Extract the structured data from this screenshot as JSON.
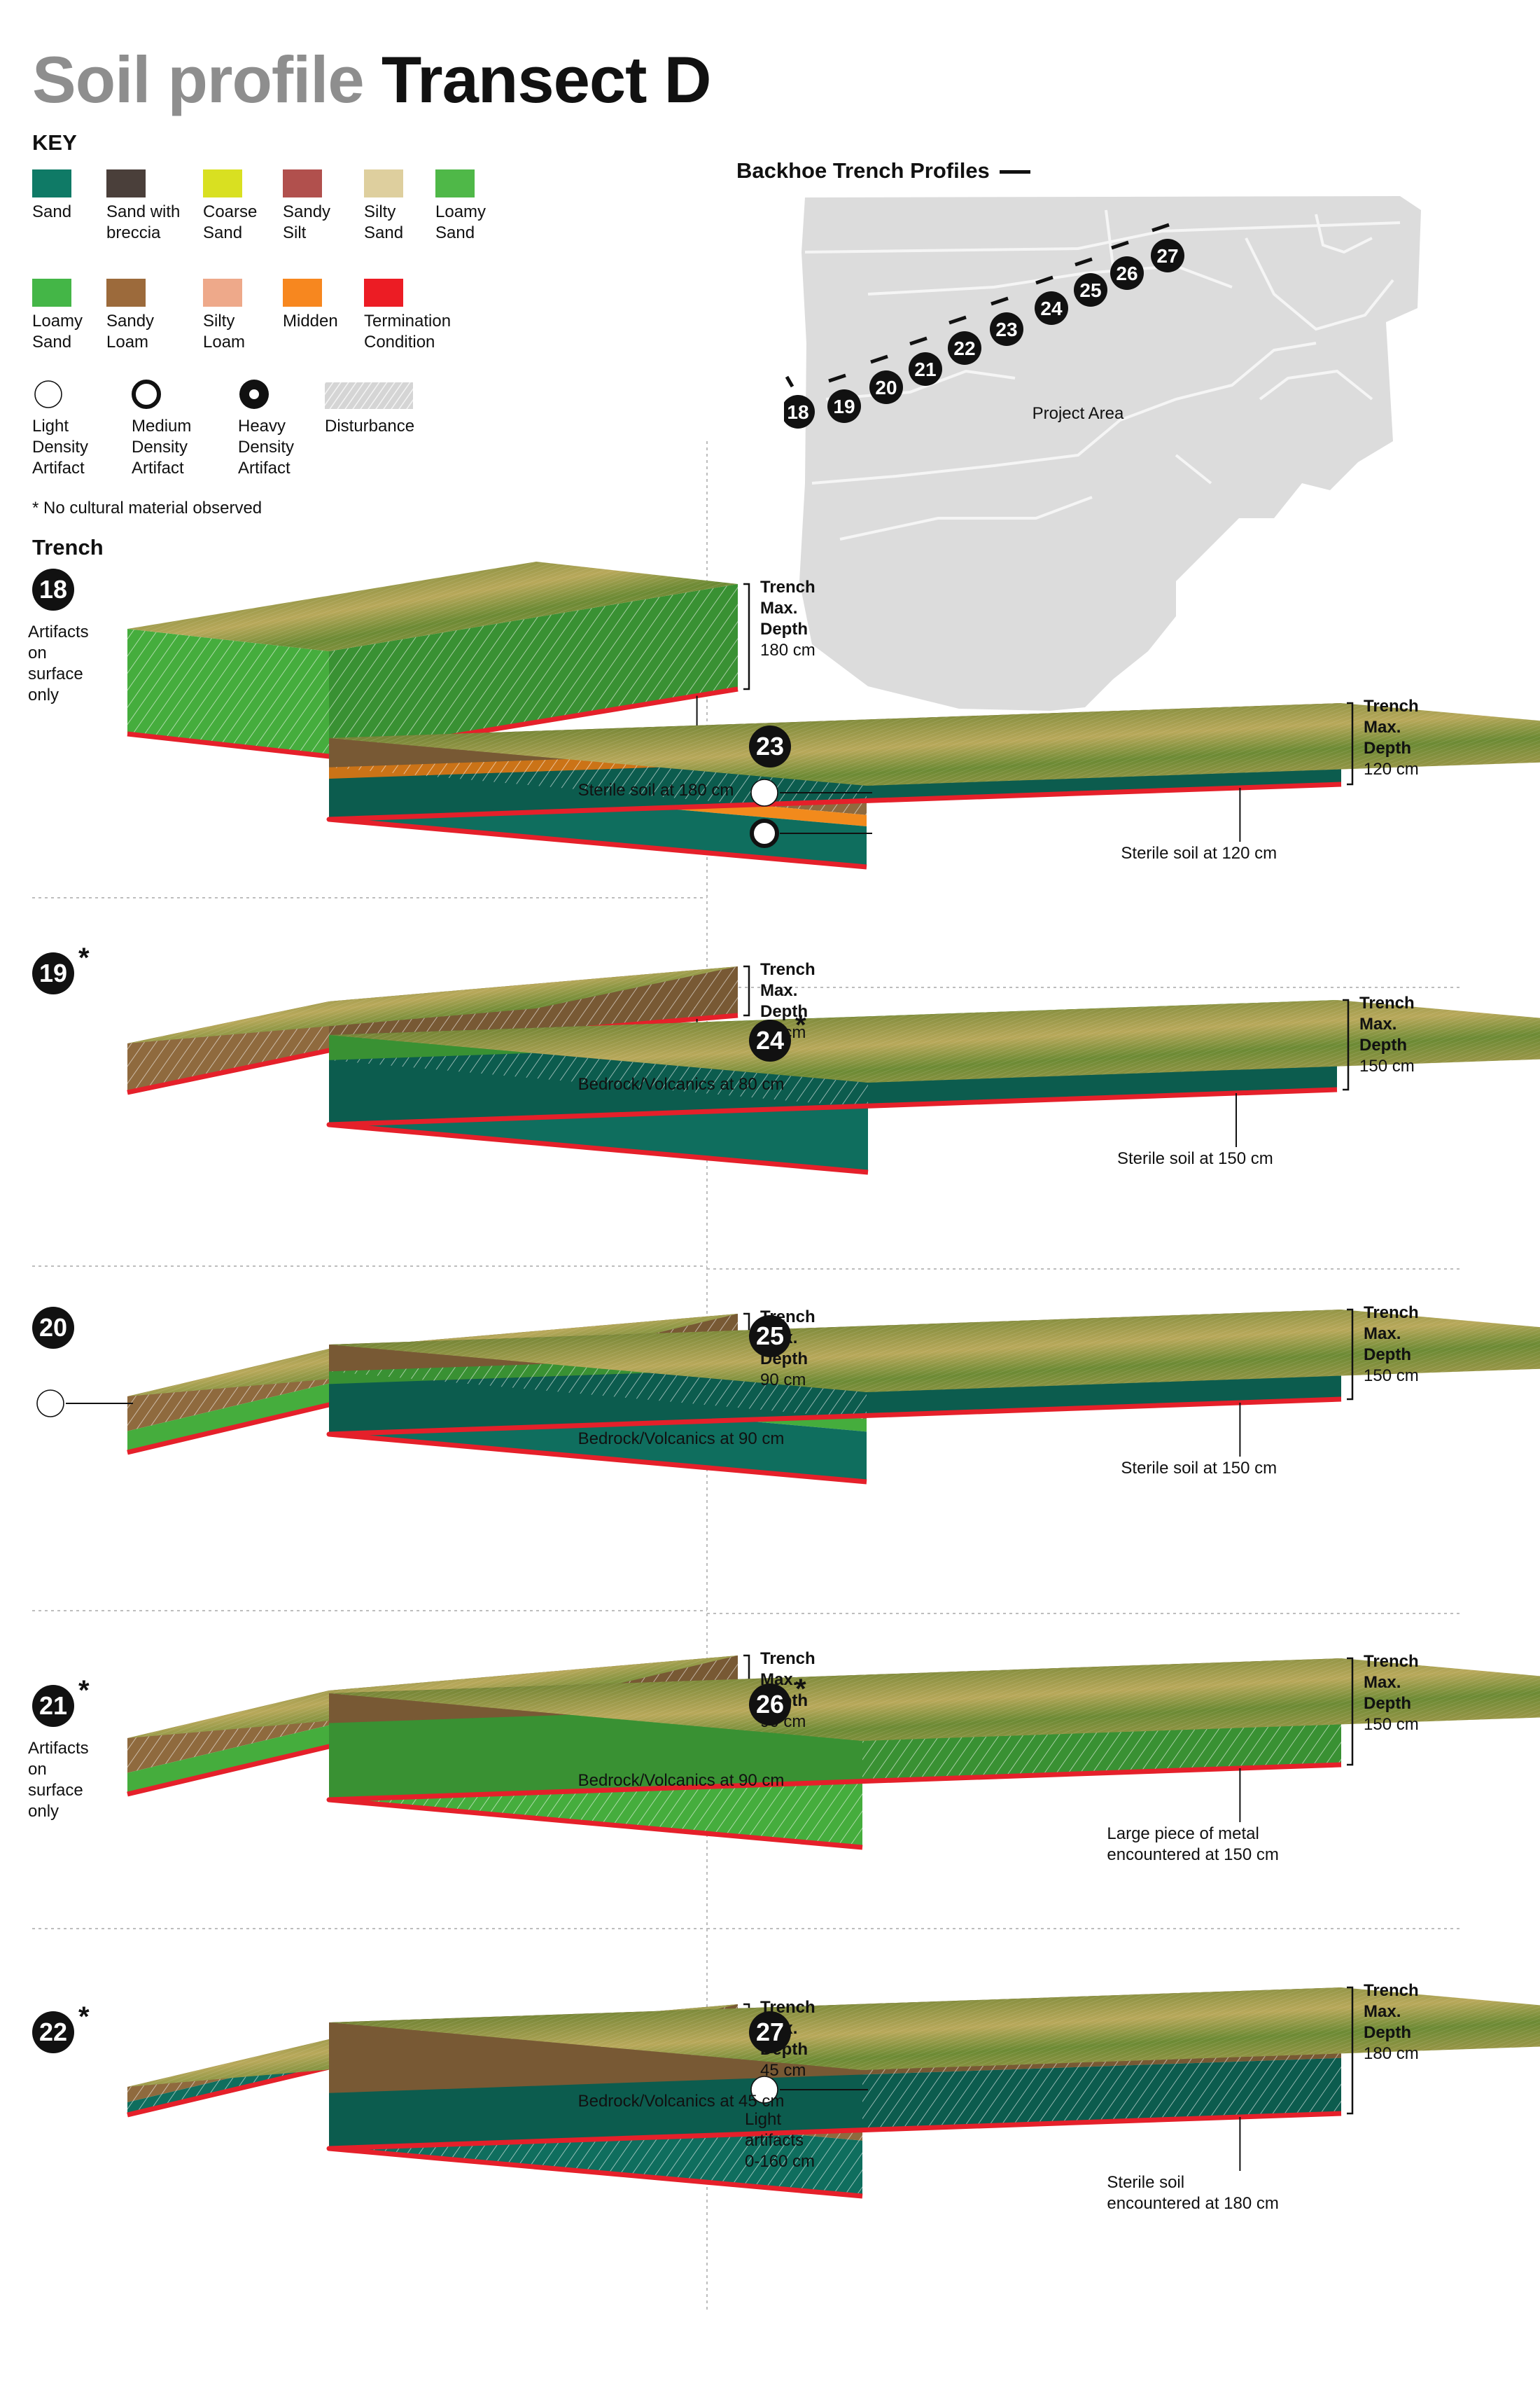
{
  "title": {
    "part1": "Soil profile",
    "part2": "Transect D"
  },
  "key": {
    "heading": "KEY",
    "soils": [
      {
        "label": "Sand",
        "color": "#0f7a66"
      },
      {
        "label": "Sand with\nbreccia",
        "color": "#4a3f3a"
      },
      {
        "label": "Coarse\nSand",
        "color": "#d9e021"
      },
      {
        "label": "Sandy\nSilt",
        "color": "#b1504d"
      },
      {
        "label": "Silty\nSand",
        "color": "#decf9e"
      },
      {
        "label": "Loamy\nSand",
        "color": "#4fb848"
      },
      {
        "label": "Loamy\nSand",
        "color": "#44b647"
      },
      {
        "label": "Sandy\nLoam",
        "color": "#9c6a3b"
      },
      {
        "label": "Silty\nLoam",
        "color": "#eea98a"
      },
      {
        "label": "Midden",
        "color": "#f7871f"
      },
      {
        "label": "Termination\nCondition",
        "color": "#ec1c24"
      }
    ],
    "artifacts": [
      {
        "label": "Light\nDensity\nArtifact",
        "icon": "light-artifact-icon"
      },
      {
        "label": "Medium\nDensity\nArtifact",
        "icon": "medium-artifact-icon"
      },
      {
        "label": "Heavy\nDensity\nArtifact",
        "icon": "heavy-artifact-icon"
      },
      {
        "label": "Disturbance",
        "icon": "disturbance-hatch-icon"
      }
    ],
    "note": "* No cultural material observed"
  },
  "trench_heading": "Trench",
  "depth_label": {
    "line1": "Trench",
    "line2": "Max.",
    "line3": "Depth"
  },
  "map": {
    "title": "Backhoe Trench Profiles",
    "area_label": "Project Area",
    "markers": [
      "18",
      "19",
      "20",
      "21",
      "22",
      "23",
      "24",
      "25",
      "26",
      "27"
    ]
  },
  "colors": {
    "sand": "#0f6e5e",
    "loamy_sand": "#45ad3d",
    "sandy_loam": "#8f6a3e",
    "midden": "#f28a1c",
    "termination": "#e5202a"
  },
  "trenches": [
    {
      "id": "18",
      "star": false,
      "depth": "180 cm",
      "note": "Sterile soil at 180 cm",
      "side_note": "Artifacts\non\nsurface\nonly",
      "artifacts": [],
      "layers": [
        "loamy_sand"
      ]
    },
    {
      "id": "19",
      "star": true,
      "depth": "80 cm",
      "note": "Bedrock/Volcanics at 80 cm",
      "side_note": "",
      "artifacts": [],
      "layers": [
        "sandy_loam"
      ]
    },
    {
      "id": "20",
      "star": false,
      "depth": "90 cm",
      "note": "Bedrock/Volcanics at 90 cm",
      "side_note": "",
      "artifacts": [
        "light"
      ],
      "layers": [
        "sandy_loam",
        "loamy_sand"
      ]
    },
    {
      "id": "21",
      "star": true,
      "depth": "90 cm",
      "note": "Bedrock/Volcanics at 90 cm",
      "side_note": "Artifacts\non\nsurface\nonly",
      "artifacts": [],
      "layers": [
        "sandy_loam",
        "loamy_sand"
      ]
    },
    {
      "id": "22",
      "star": true,
      "depth": "45 cm",
      "note": "Bedrock/Volcanics at 45 cm",
      "side_note": "",
      "artifacts": [],
      "layers": [
        "sandy_loam",
        "sand"
      ]
    },
    {
      "id": "23",
      "star": false,
      "depth": "120 cm",
      "note": "Sterile soil at 120 cm",
      "side_note": "",
      "artifacts": [
        "light",
        "medium"
      ],
      "layers": [
        "sandy_loam",
        "midden",
        "sand"
      ]
    },
    {
      "id": "24",
      "star": true,
      "depth": "150 cm",
      "note": "Sterile soil at 150 cm",
      "side_note": "",
      "artifacts": [],
      "layers": [
        "loamy_sand",
        "sand"
      ]
    },
    {
      "id": "25",
      "star": false,
      "depth": "150 cm",
      "note": "Sterile soil at 150 cm",
      "side_note": "",
      "artifacts": [],
      "layers": [
        "sandy_loam",
        "loamy_sand",
        "sand"
      ]
    },
    {
      "id": "26",
      "star": true,
      "depth": "150 cm",
      "note": "Large piece of metal\nencountered at 150 cm",
      "side_note": "",
      "artifacts": [],
      "layers": [
        "sandy_loam",
        "loamy_sand"
      ]
    },
    {
      "id": "27",
      "star": false,
      "depth": "180 cm",
      "note": "Sterile soil\nencountered at 180 cm",
      "side_note": "Light\nartifacts\n0-160 cm",
      "artifacts": [
        "light"
      ],
      "layers": [
        "sandy_loam",
        "sand"
      ]
    }
  ]
}
